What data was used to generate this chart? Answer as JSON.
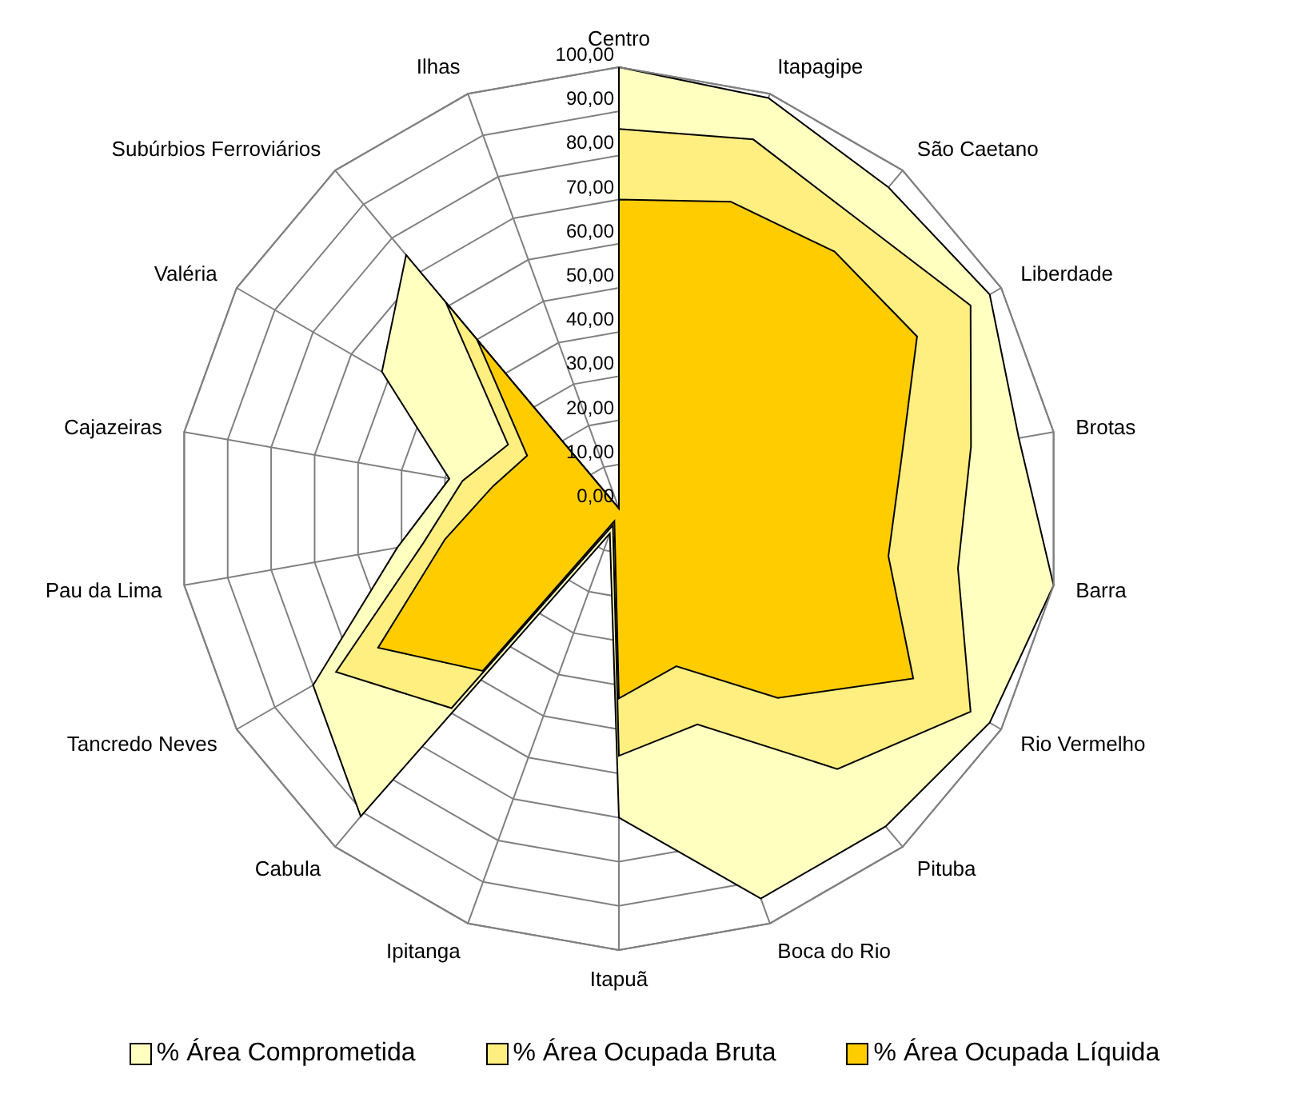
{
  "chart_data": {
    "type": "radar",
    "categories": [
      "Centro",
      "Itapagipe",
      "São Caetano",
      "Liberdade",
      "Brotas",
      "Barra",
      "Rio Vermelho",
      "Pituba",
      "Boca do Rio",
      "Itapuã",
      "Ipitanga",
      "Cabula",
      "Tancredo Neves",
      "Pau da Lima",
      "Cajazeiras",
      "Valéria",
      "Subúrbios Ferroviários",
      "Ilhas"
    ],
    "series": [
      {
        "name": "% Área Comprometida",
        "color": "#ffffc0",
        "values": [
          100,
          99,
          95,
          97,
          92,
          100,
          97,
          94,
          94,
          70,
          6,
          91,
          80,
          51,
          39,
          62,
          75,
          0
        ]
      },
      {
        "name": "% Área Ocupada Bruta",
        "color": "#ffee80",
        "values": [
          86,
          89,
          85,
          92,
          81,
          78,
          92,
          77,
          52,
          56,
          4,
          59,
          74,
          45,
          36,
          29,
          61,
          0
        ]
      },
      {
        "name": "% Área Ocupada Líquida",
        "color": "#ffcc00",
        "values": [
          70,
          74,
          76,
          78,
          65,
          62,
          77,
          56,
          38,
          43,
          3,
          48,
          63,
          40,
          29,
          24,
          50,
          0
        ]
      }
    ],
    "ylim": [
      0,
      100
    ],
    "yticks": [
      {
        "value": 0,
        "label": "0,00"
      },
      {
        "value": 10,
        "label": "10,00"
      },
      {
        "value": 20,
        "label": "20,00"
      },
      {
        "value": 30,
        "label": "30,00"
      },
      {
        "value": 40,
        "label": "40,00"
      },
      {
        "value": 50,
        "label": "50,00"
      },
      {
        "value": 60,
        "label": "60,00"
      },
      {
        "value": 70,
        "label": "70,00"
      },
      {
        "value": 80,
        "label": "80,00"
      },
      {
        "value": 90,
        "label": "90,00"
      },
      {
        "value": 100,
        "label": "100,00"
      }
    ],
    "grid": true,
    "legend": "bottom"
  }
}
